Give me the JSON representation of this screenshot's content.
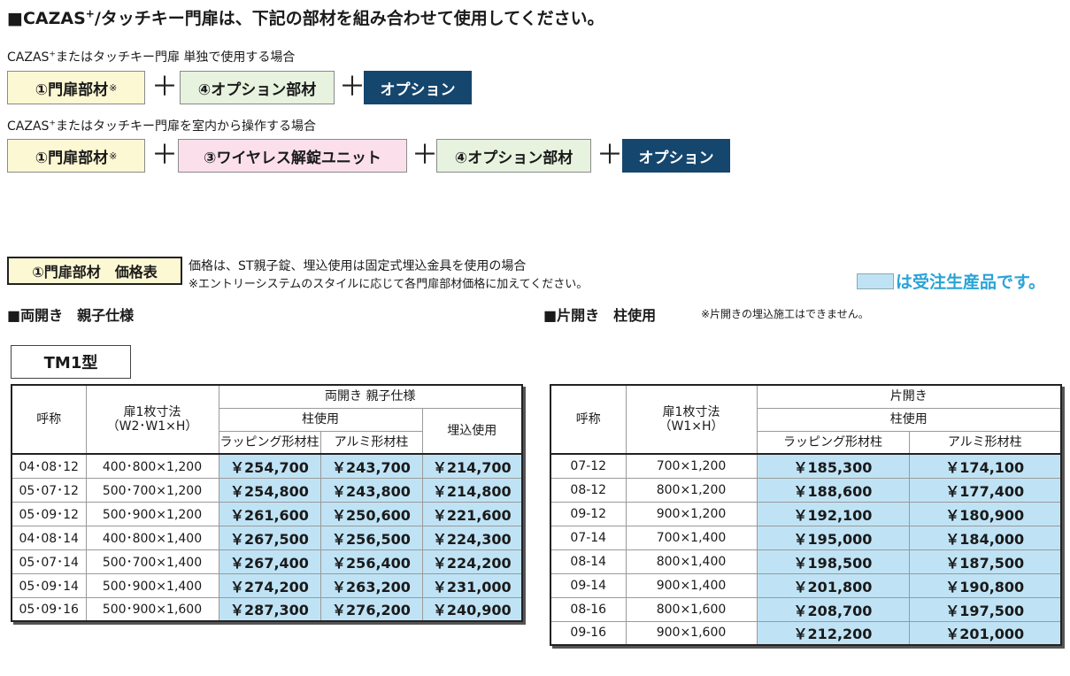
{
  "heading": {
    "prefix": "■CAZAS",
    "sup": "+",
    "rest": "/タッチキー門扉は、下記の部材を組み合わせて使用してください。"
  },
  "case1": {
    "caption_prefix": "CAZAS",
    "caption_sup": "+",
    "caption_rest": "またはタッチキー門扉 単独で使用する場合",
    "box1": "①門扉部材",
    "box1_mark": "※",
    "box2": "④オプション部材",
    "box3": "オプション"
  },
  "case2": {
    "caption_prefix": "CAZAS",
    "caption_sup": "+",
    "caption_rest": "またはタッチキー門扉を室内から操作する場合",
    "box1": "①門扉部材",
    "box1_mark": "※",
    "box2": "③ワイヤレス解錠ユニット",
    "box3": "④オプション部材",
    "box4": "オプション"
  },
  "plus_sign": "＋",
  "price_header": "①門扉部材　価格表",
  "price_note1": "価格は、ST親子錠、埋込使用は固定式埋込金具を使用の場合",
  "price_note2": "※エントリーシステムのスタイルに応じて各門扉部材価格に加えてください。",
  "legend": {
    "text": "は受注生産品です。",
    "color": "#bfe3f5"
  },
  "left_section": {
    "title": "■両開き　親子仕様"
  },
  "right_section": {
    "title": "■片開き　柱使用",
    "note": "※片開きの埋込施工はできません。"
  },
  "model_label": "TM1型",
  "left_table": {
    "h_name": "呼称",
    "h_size_line1": "扉1枚寸法",
    "h_size_line2": "（W2･W1×H）",
    "h_group": "両開き 親子仕様",
    "h_pillar": "柱使用",
    "h_wrap": "ラッピング形材柱",
    "h_alu": "アルミ形材柱",
    "h_embed": "埋込使用",
    "rows": [
      {
        "name": "04･08･12",
        "size": "400･800×1,200",
        "wrap": "￥254,700",
        "alu": "￥243,700",
        "embed": "￥214,700"
      },
      {
        "name": "05･07･12",
        "size": "500･700×1,200",
        "wrap": "￥254,800",
        "alu": "￥243,800",
        "embed": "￥214,800"
      },
      {
        "name": "05･09･12",
        "size": "500･900×1,200",
        "wrap": "￥261,600",
        "alu": "￥250,600",
        "embed": "￥221,600"
      },
      {
        "name": "04･08･14",
        "size": "400･800×1,400",
        "wrap": "￥267,500",
        "alu": "￥256,500",
        "embed": "￥224,300"
      },
      {
        "name": "05･07･14",
        "size": "500･700×1,400",
        "wrap": "￥267,400",
        "alu": "￥256,400",
        "embed": "￥224,200"
      },
      {
        "name": "05･09･14",
        "size": "500･900×1,400",
        "wrap": "￥274,200",
        "alu": "￥263,200",
        "embed": "￥231,000"
      },
      {
        "name": "05･09･16",
        "size": "500･900×1,600",
        "wrap": "￥287,300",
        "alu": "￥276,200",
        "embed": "￥240,900"
      }
    ]
  },
  "right_table": {
    "h_name": "呼称",
    "h_size_line1": "扉1枚寸法",
    "h_size_line2": "（W1×H）",
    "h_group": "片開き",
    "h_pillar": "柱使用",
    "h_wrap": "ラッピング形材柱",
    "h_alu": "アルミ形材柱",
    "rows": [
      {
        "name": "07-12",
        "size": "700×1,200",
        "wrap": "￥185,300",
        "alu": "￥174,100"
      },
      {
        "name": "08-12",
        "size": "800×1,200",
        "wrap": "￥188,600",
        "alu": "￥177,400"
      },
      {
        "name": "09-12",
        "size": "900×1,200",
        "wrap": "￥192,100",
        "alu": "￥180,900"
      },
      {
        "name": "07-14",
        "size": "700×1,400",
        "wrap": "￥195,000",
        "alu": "￥184,000"
      },
      {
        "name": "08-14",
        "size": "800×1,400",
        "wrap": "￥198,500",
        "alu": "￥187,500"
      },
      {
        "name": "09-14",
        "size": "900×1,400",
        "wrap": "￥201,800",
        "alu": "￥190,800"
      },
      {
        "name": "08-16",
        "size": "800×1,600",
        "wrap": "￥208,700",
        "alu": "￥197,500"
      },
      {
        "name": "09-16",
        "size": "900×1,600",
        "wrap": "￥212,200",
        "alu": "￥201,000"
      }
    ]
  }
}
